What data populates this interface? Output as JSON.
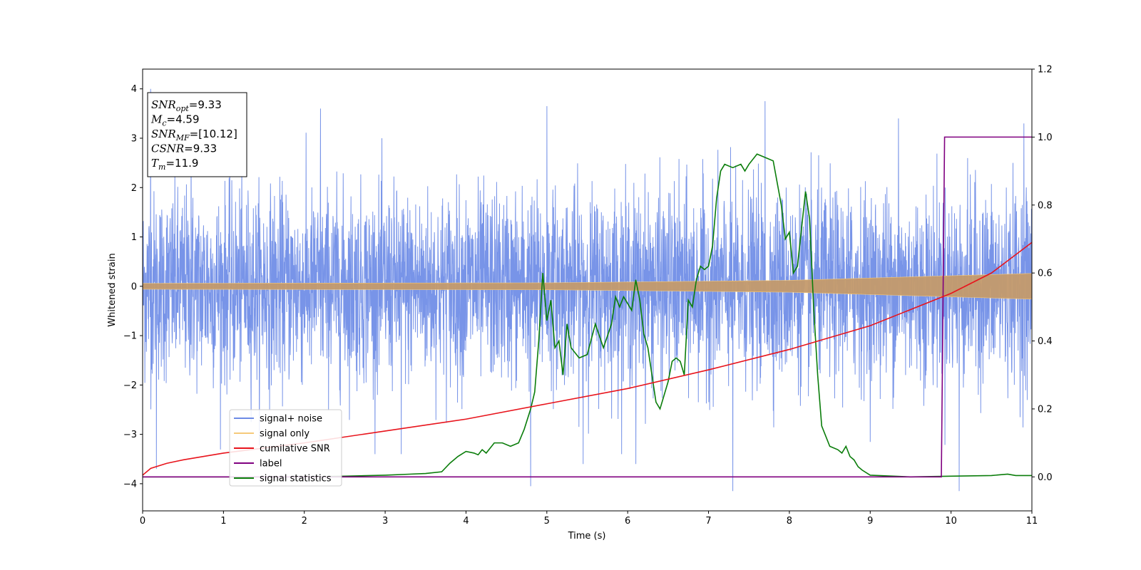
{
  "chart_data": {
    "type": "line",
    "xlabel": "Time (s)",
    "ylabel": "Whitened strain",
    "xlim": [
      0,
      11
    ],
    "ylim_left": [
      -4.55,
      4.4
    ],
    "ylim_right": [
      -0.1,
      1.2
    ],
    "x_ticks": [
      "0",
      "1",
      "2",
      "3",
      "4",
      "5",
      "6",
      "7",
      "8",
      "9",
      "10",
      "11"
    ],
    "y_ticks_left": [
      "−4",
      "−3",
      "−2",
      "−1",
      "0",
      "1",
      "2",
      "3",
      "4"
    ],
    "y_tick_values_left": [
      -4,
      -3,
      -2,
      -1,
      0,
      1,
      2,
      3,
      4
    ],
    "y_ticks_right": [
      "0.0",
      "0.2",
      "0.4",
      "0.6",
      "0.8",
      "1.0",
      "1.2"
    ],
    "y_tick_values_right": [
      0.0,
      0.2,
      0.4,
      0.6,
      0.8,
      1.0,
      1.2
    ],
    "legend_position": "lower-left",
    "series": [
      {
        "name": "signal+ noise",
        "color": "#6d8be6",
        "axis": "left",
        "kind": "noise",
        "std": 0.95,
        "peak_values": [
          [
            0.1,
            4.0
          ],
          [
            0.17,
            -3.7
          ],
          [
            0.6,
            3.1
          ],
          [
            2.2,
            3.6
          ],
          [
            3.2,
            -3.4
          ],
          [
            4.8,
            -4.05
          ],
          [
            5.0,
            3.65
          ],
          [
            5.45,
            -3.6
          ],
          [
            6.1,
            -3.6
          ],
          [
            7.3,
            -4.15
          ],
          [
            7.7,
            3.75
          ],
          [
            9.35,
            3.4
          ],
          [
            10.1,
            -4.15
          ],
          [
            10.9,
            3.3
          ]
        ]
      },
      {
        "name": "signal only",
        "color": "#f6c97a",
        "axis": "left",
        "kind": "chirp",
        "amplitude": [
          [
            0,
            0.06
          ],
          [
            5,
            0.07
          ],
          [
            8,
            0.12
          ],
          [
            11,
            0.26
          ]
        ]
      },
      {
        "name": "cumilative SNR",
        "color": "#e8141c",
        "axis": "right",
        "points": [
          [
            0,
            0.005
          ],
          [
            0.1,
            0.025
          ],
          [
            0.3,
            0.04
          ],
          [
            0.5,
            0.05
          ],
          [
            1,
            0.07
          ],
          [
            2,
            0.1
          ],
          [
            3,
            0.135
          ],
          [
            4,
            0.17
          ],
          [
            5,
            0.215
          ],
          [
            6,
            0.26
          ],
          [
            7,
            0.315
          ],
          [
            8,
            0.375
          ],
          [
            9,
            0.445
          ],
          [
            10,
            0.54
          ],
          [
            10.5,
            0.6
          ],
          [
            11,
            0.69
          ]
        ]
      },
      {
        "name": "label",
        "color": "#800080",
        "axis": "right",
        "points": [
          [
            0,
            0.0
          ],
          [
            9.88,
            0.0
          ],
          [
            9.92,
            1.0
          ],
          [
            11,
            1.0
          ]
        ]
      },
      {
        "name": "signal statistics",
        "color": "#0a7d0a",
        "axis": "right",
        "points": [
          [
            0,
            0.0
          ],
          [
            1,
            0.0
          ],
          [
            2,
            0.0
          ],
          [
            2.5,
            0.002
          ],
          [
            3,
            0.005
          ],
          [
            3.3,
            0.008
          ],
          [
            3.5,
            0.01
          ],
          [
            3.7,
            0.015
          ],
          [
            3.8,
            0.04
          ],
          [
            3.9,
            0.06
          ],
          [
            4.0,
            0.075
          ],
          [
            4.1,
            0.07
          ],
          [
            4.15,
            0.065
          ],
          [
            4.2,
            0.08
          ],
          [
            4.25,
            0.07
          ],
          [
            4.35,
            0.1
          ],
          [
            4.45,
            0.1
          ],
          [
            4.55,
            0.09
          ],
          [
            4.65,
            0.1
          ],
          [
            4.72,
            0.14
          ],
          [
            4.8,
            0.2
          ],
          [
            4.85,
            0.25
          ],
          [
            4.9,
            0.4
          ],
          [
            4.95,
            0.6
          ],
          [
            5.0,
            0.46
          ],
          [
            5.05,
            0.52
          ],
          [
            5.1,
            0.38
          ],
          [
            5.15,
            0.4
          ],
          [
            5.2,
            0.3
          ],
          [
            5.25,
            0.45
          ],
          [
            5.3,
            0.38
          ],
          [
            5.4,
            0.35
          ],
          [
            5.5,
            0.36
          ],
          [
            5.6,
            0.45
          ],
          [
            5.7,
            0.38
          ],
          [
            5.8,
            0.45
          ],
          [
            5.85,
            0.53
          ],
          [
            5.9,
            0.5
          ],
          [
            5.95,
            0.53
          ],
          [
            6.0,
            0.51
          ],
          [
            6.05,
            0.49
          ],
          [
            6.1,
            0.58
          ],
          [
            6.15,
            0.52
          ],
          [
            6.2,
            0.42
          ],
          [
            6.25,
            0.38
          ],
          [
            6.3,
            0.3
          ],
          [
            6.35,
            0.22
          ],
          [
            6.4,
            0.2
          ],
          [
            6.45,
            0.24
          ],
          [
            6.5,
            0.28
          ],
          [
            6.55,
            0.34
          ],
          [
            6.6,
            0.35
          ],
          [
            6.65,
            0.34
          ],
          [
            6.7,
            0.3
          ],
          [
            6.75,
            0.52
          ],
          [
            6.8,
            0.5
          ],
          [
            6.85,
            0.58
          ],
          [
            6.9,
            0.62
          ],
          [
            6.95,
            0.61
          ],
          [
            7.0,
            0.62
          ],
          [
            7.05,
            0.68
          ],
          [
            7.1,
            0.82
          ],
          [
            7.15,
            0.9
          ],
          [
            7.2,
            0.92
          ],
          [
            7.3,
            0.91
          ],
          [
            7.4,
            0.92
          ],
          [
            7.45,
            0.9
          ],
          [
            7.5,
            0.92
          ],
          [
            7.6,
            0.95
          ],
          [
            7.7,
            0.94
          ],
          [
            7.8,
            0.93
          ],
          [
            7.9,
            0.8
          ],
          [
            7.95,
            0.7
          ],
          [
            8.0,
            0.72
          ],
          [
            8.05,
            0.6
          ],
          [
            8.1,
            0.62
          ],
          [
            8.2,
            0.84
          ],
          [
            8.25,
            0.76
          ],
          [
            8.3,
            0.5
          ],
          [
            8.35,
            0.3
          ],
          [
            8.4,
            0.15
          ],
          [
            8.5,
            0.09
          ],
          [
            8.6,
            0.08
          ],
          [
            8.65,
            0.07
          ],
          [
            8.7,
            0.09
          ],
          [
            8.75,
            0.06
          ],
          [
            8.8,
            0.05
          ],
          [
            8.85,
            0.03
          ],
          [
            8.9,
            0.02
          ],
          [
            9.0,
            0.005
          ],
          [
            9.5,
            0.0
          ],
          [
            10,
            0.002
          ],
          [
            10.5,
            0.004
          ],
          [
            10.7,
            0.008
          ],
          [
            10.8,
            0.004
          ],
          [
            11,
            0.004
          ]
        ]
      }
    ],
    "annotations": [
      {
        "base": "SNR",
        "sub": "opt",
        "value": "=9.33"
      },
      {
        "base": "M",
        "sub": "c",
        "value": "=4.59"
      },
      {
        "base": "SNR",
        "sub": "MF",
        "value": "=[10.12]"
      },
      {
        "base": "CSNR",
        "sub": "",
        "value": "=9.33"
      },
      {
        "base": "T",
        "sub": "m",
        "value": "=11.9"
      }
    ]
  }
}
